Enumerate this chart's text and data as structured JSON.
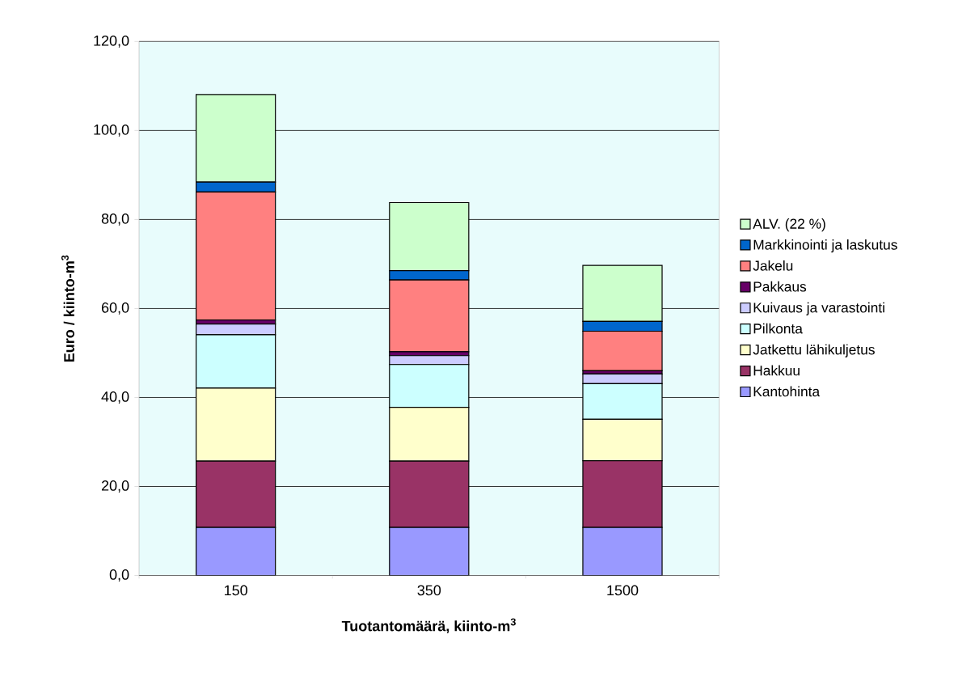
{
  "chart_data": {
    "type": "bar",
    "stacked": true,
    "xlabel": "Tuotantomäärä, kiinto-m$^{3}$",
    "ylabel": "Euro / kiinto-m$^{3}$",
    "categories": [
      "150",
      "350",
      "1500"
    ],
    "series": [
      {
        "name": "Kantohinta",
        "color": "#9999ff",
        "values": [
          10.8,
          10.8,
          10.8
        ]
      },
      {
        "name": "Hakkuu",
        "color": "#993366",
        "values": [
          14.9,
          14.9,
          15.0
        ]
      },
      {
        "name": "Jatkettu lähikuljetus",
        "color": "#ffffcc",
        "values": [
          16.4,
          12.1,
          9.3
        ]
      },
      {
        "name": "Pilkonta",
        "color": "#ccffff",
        "values": [
          12.0,
          9.6,
          8.0
        ]
      },
      {
        "name": "Kuivaus ja varastointi",
        "color": "#ccccff",
        "values": [
          2.4,
          2.0,
          2.2
        ]
      },
      {
        "name": "Pakkaus",
        "color": "#660066",
        "values": [
          0.9,
          0.9,
          0.7
        ]
      },
      {
        "name": "Jakelu",
        "color": "#ff8080",
        "values": [
          28.8,
          16.1,
          8.9
        ]
      },
      {
        "name": "Markkinointi ja laskutus",
        "color": "#0066cc",
        "values": [
          2.2,
          2.1,
          2.2
        ]
      },
      {
        "name": "ALV. (22 %)",
        "color": "#ccffcc",
        "values": [
          19.7,
          15.3,
          12.6
        ]
      }
    ],
    "ylim": [
      0,
      120
    ],
    "yticks": [
      {
        "value": 0,
        "label": "0,0"
      },
      {
        "value": 20,
        "label": "20,0"
      },
      {
        "value": 40,
        "label": "40,0"
      },
      {
        "value": 60,
        "label": "60,0"
      },
      {
        "value": 80,
        "label": "80,0"
      },
      {
        "value": 100,
        "label": "100,0"
      },
      {
        "value": 120,
        "label": "120,0"
      }
    ],
    "grid": "y",
    "legend": "right"
  }
}
